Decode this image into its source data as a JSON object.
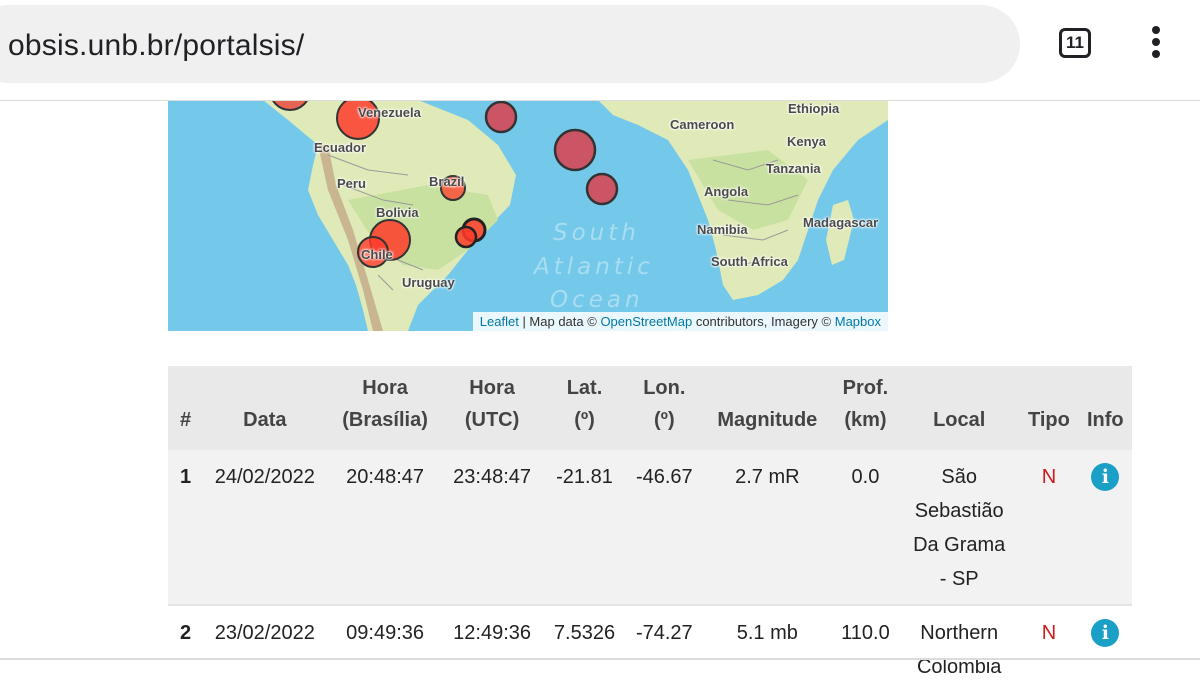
{
  "browser": {
    "url": "obsis.unb.br/portalsis/",
    "tab_count": "11"
  },
  "map": {
    "labels": {
      "venezuela": "Venezuela",
      "ecuador": "Ecuador",
      "peru": "Peru",
      "brazil": "Brazil",
      "bolivia": "Bolivia",
      "chile": "Chile",
      "uruguay": "Uruguay",
      "cameroon": "Cameroon",
      "ethiopia": "Ethiopia",
      "kenya": "Kenya",
      "tanzania": "Tanzania",
      "angola": "Angola",
      "namibia": "Namibia",
      "madagascar": "Madagascar",
      "south_africa": "South Africa"
    },
    "ocean": [
      "South",
      "Atlantic",
      "Ocean"
    ],
    "attribution": {
      "leaflet": "Leaflet",
      "sep": " | Map data © ",
      "osm": "OpenStreetMap",
      "mid": " contributors, Imagery © ",
      "mapbox": "Mapbox"
    },
    "marker_color": "#e8413a"
  },
  "table": {
    "headers": {
      "num": "#",
      "data": "Data",
      "hora_br_1": "Hora",
      "hora_br_2": "(Brasília)",
      "hora_utc_1": "Hora",
      "hora_utc_2": "(UTC)",
      "lat_1": "Lat.",
      "lat_2": "(º)",
      "lon_1": "Lon.",
      "lon_2": "(º)",
      "magnitude": "Magnitude",
      "prof_1": "Prof.",
      "prof_2": "(km)",
      "local": "Local",
      "tipo": "Tipo",
      "info": "Info"
    },
    "rows": [
      {
        "idx": "1",
        "data": "24/02/2022",
        "hora_br": "20:48:47",
        "hora_utc": "23:48:47",
        "lat": "-21.81",
        "lon": "-46.67",
        "magnitude": "2.7 mR",
        "prof": "0.0",
        "local_lines": [
          "São",
          "Sebastião",
          "Da Grama",
          "- SP"
        ],
        "tipo": "N",
        "info": "i"
      },
      {
        "idx": "2",
        "data": "23/02/2022",
        "hora_br": "09:49:36",
        "hora_utc": "12:49:36",
        "lat": "7.5326",
        "lon": "-74.27",
        "magnitude": "5.1 mb",
        "prof": "110.0",
        "local_lines": [
          "Northern",
          "Colombia"
        ],
        "tipo": "N",
        "info": "i"
      }
    ]
  }
}
